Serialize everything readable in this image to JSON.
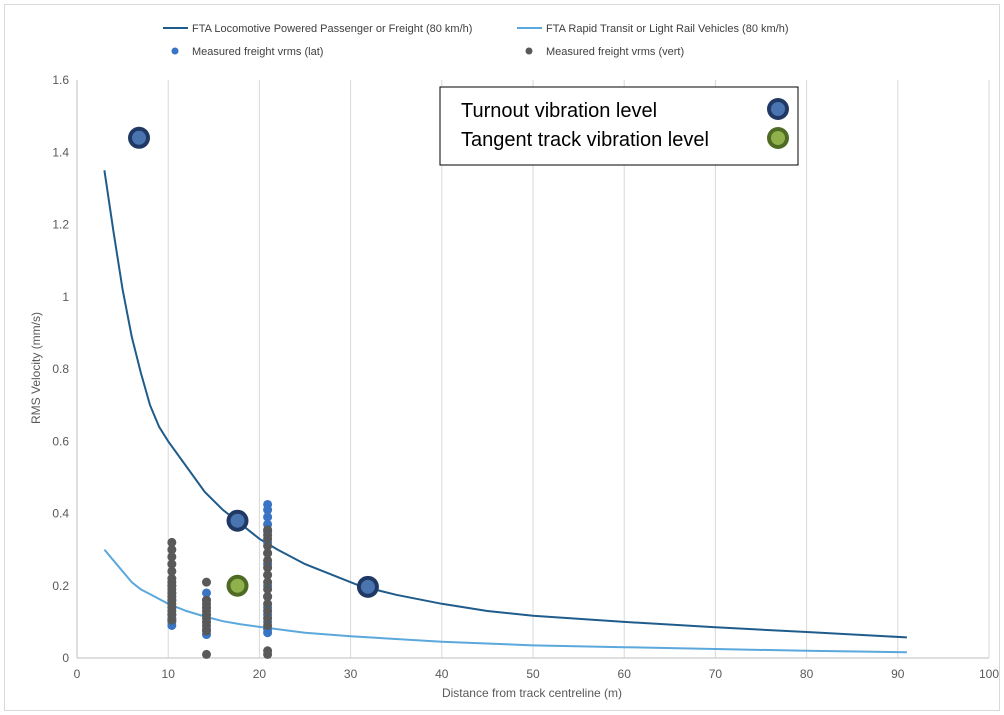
{
  "chart_data": {
    "type": "scatter",
    "xlabel": "Distance from track centreline (m)",
    "ylabel": "RMS Velocity (mm/s)",
    "xlim": [
      0,
      100
    ],
    "ylim": [
      0,
      1.6
    ],
    "x_ticks": [
      0,
      10,
      20,
      30,
      40,
      50,
      60,
      70,
      80,
      90,
      100
    ],
    "y_ticks": [
      0,
      0.2,
      0.4,
      0.6,
      0.8,
      1,
      1.2,
      1.4,
      1.6
    ],
    "y_tick_labels": [
      "0",
      "0.2",
      "0.4",
      "0.6",
      "0.8",
      "1",
      "1.2",
      "1.4",
      "1.6"
    ],
    "grid": "vertical",
    "legend_position": "top",
    "series": [
      {
        "name": "FTA Locomotive Powered Passenger or Freight (80 km/h)",
        "kind": "line",
        "color": "#1f5c8b",
        "x": [
          3,
          4,
          5,
          6,
          7,
          8,
          9,
          10,
          12,
          14,
          16,
          18,
          20,
          22,
          25,
          28,
          31,
          35,
          40,
          45,
          50,
          60,
          70,
          80,
          91
        ],
        "y": [
          1.35,
          1.18,
          1.02,
          0.89,
          0.79,
          0.7,
          0.64,
          0.6,
          0.53,
          0.46,
          0.41,
          0.37,
          0.33,
          0.3,
          0.26,
          0.23,
          0.2,
          0.175,
          0.15,
          0.13,
          0.117,
          0.1,
          0.085,
          0.072,
          0.057
        ]
      },
      {
        "name": "FTA Rapid Transit or Light Rail Vehicles (80 km/h)",
        "kind": "line",
        "color": "#5ba8dc",
        "x": [
          3,
          5,
          6,
          7,
          8,
          10,
          12,
          14,
          16,
          18,
          20,
          25,
          30,
          40,
          50,
          60,
          70,
          80,
          91
        ],
        "y": [
          0.3,
          0.24,
          0.21,
          0.19,
          0.177,
          0.15,
          0.13,
          0.115,
          0.102,
          0.093,
          0.086,
          0.07,
          0.06,
          0.045,
          0.035,
          0.03,
          0.025,
          0.02,
          0.016
        ]
      },
      {
        "name": "Measured freight vrms (lat)",
        "kind": "scatter",
        "color": "#3a75c4",
        "x": [
          10.4,
          10.4,
          10.4,
          10.4,
          10.4,
          10.4,
          10.4,
          10.4,
          14.2,
          14.2,
          14.2,
          14.2,
          14.2,
          14.2,
          14.2,
          20.9,
          20.9,
          20.9,
          20.9,
          20.9,
          20.9,
          20.9,
          20.9,
          20.9,
          20.9,
          20.9,
          20.9,
          20.9,
          20.9,
          20.9,
          20.9
        ],
        "y": [
          0.09,
          0.1,
          0.11,
          0.12,
          0.14,
          0.16,
          0.18,
          0.2,
          0.065,
          0.08,
          0.1,
          0.12,
          0.14,
          0.16,
          0.18,
          0.07,
          0.08,
          0.1,
          0.12,
          0.14,
          0.17,
          0.2,
          0.23,
          0.26,
          0.29,
          0.32,
          0.35,
          0.37,
          0.39,
          0.41,
          0.425
        ]
      },
      {
        "name": "Measured freight vrms (vert)",
        "kind": "scatter",
        "color": "#595959",
        "x": [
          10.4,
          10.4,
          10.4,
          10.4,
          10.4,
          10.4,
          10.4,
          10.4,
          10.4,
          10.4,
          10.4,
          10.4,
          10.4,
          10.4,
          10.4,
          10.4,
          10.4,
          14.2,
          14.2,
          14.2,
          14.2,
          14.2,
          14.2,
          14.2,
          14.2,
          14.2,
          14.2,
          14.2,
          20.9,
          20.9,
          20.9,
          20.9,
          20.9,
          20.9,
          20.9,
          20.9,
          20.9,
          20.9,
          20.9,
          20.9,
          20.9,
          20.9,
          20.9,
          20.9,
          20.9
        ],
        "y": [
          0.105,
          0.12,
          0.13,
          0.14,
          0.15,
          0.16,
          0.17,
          0.18,
          0.19,
          0.2,
          0.21,
          0.22,
          0.24,
          0.26,
          0.28,
          0.3,
          0.32,
          0.01,
          0.075,
          0.09,
          0.1,
          0.11,
          0.12,
          0.13,
          0.14,
          0.15,
          0.16,
          0.21,
          0.01,
          0.02,
          0.09,
          0.11,
          0.13,
          0.15,
          0.17,
          0.19,
          0.21,
          0.23,
          0.25,
          0.27,
          0.29,
          0.31,
          0.33,
          0.34,
          0.355
        ]
      }
    ],
    "highlight_points": {
      "turnout": [
        {
          "x": 6.8,
          "y": 1.44
        },
        {
          "x": 17.6,
          "y": 0.38
        },
        {
          "x": 31.9,
          "y": 0.197
        }
      ],
      "tangent": [
        {
          "x": 17.6,
          "y": 0.2
        }
      ]
    },
    "annotation": {
      "items": [
        {
          "label": "Turnout vibration level",
          "color": "#4a74b0",
          "ring": "#1f3864"
        },
        {
          "label": "Tangent track vibration level",
          "color": "#8fb04a",
          "ring": "#4e6b24"
        }
      ]
    }
  }
}
